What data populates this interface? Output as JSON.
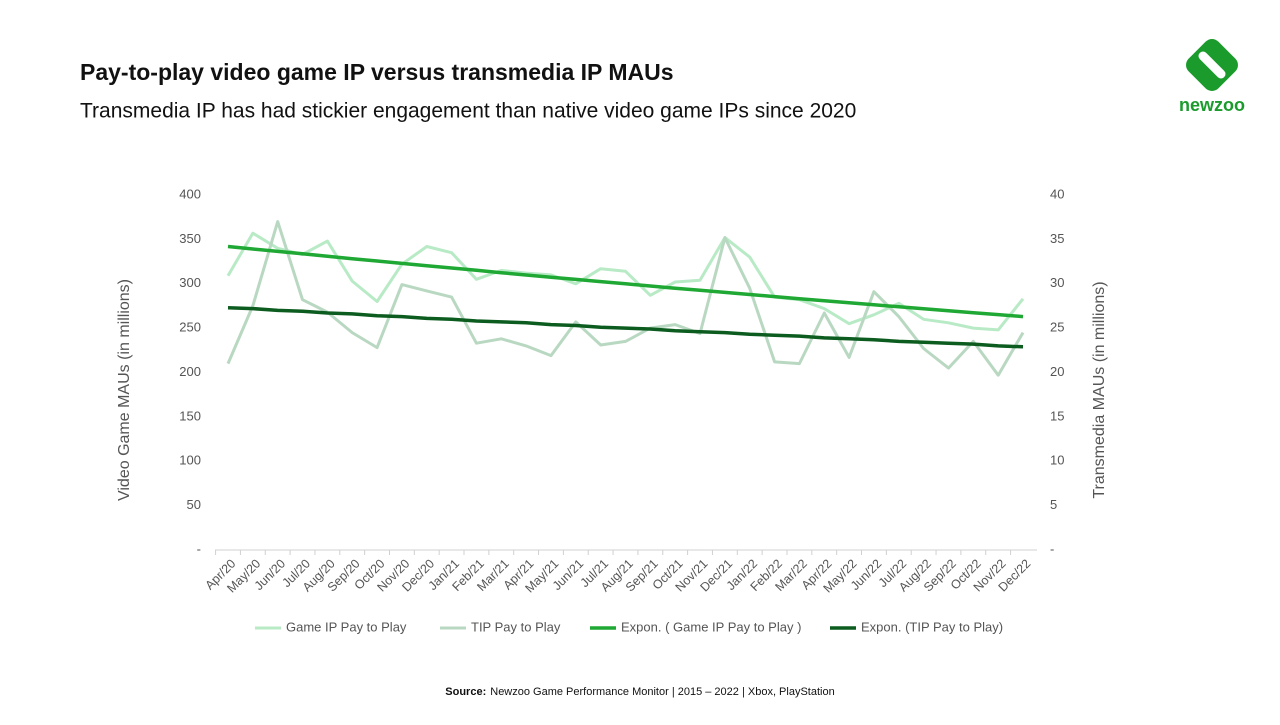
{
  "chart_data": {
    "type": "line",
    "title": "Pay-to-play video game IP versus transmedia IP MAUs",
    "subtitle": "Transmedia IP has had stickier engagement than native video game IPs since 2020",
    "ylabel": "Video Game MAUs (in millions)",
    "y2label": "Transmedia MAUs (in millions)",
    "categories": [
      "Apr/20",
      "May/20",
      "Jun/20",
      "Jul/20",
      "Aug/20",
      "Sep/20",
      "Oct/20",
      "Nov/20",
      "Dec/20",
      "Jan/21",
      "Feb/21",
      "Mar/21",
      "Apr/21",
      "May/21",
      "Jun/21",
      "Jul/21",
      "Aug/21",
      "Sep/21",
      "Oct/21",
      "Nov/21",
      "Dec/21",
      "Jan/22",
      "Feb/22",
      "Mar/22",
      "Apr/22",
      "May/22",
      "Jun/22",
      "Jul/22",
      "Aug/22",
      "Sep/22",
      "Oct/22",
      "Nov/22",
      "Dec/22"
    ],
    "series": [
      {
        "name": "Game IP Pay to Play",
        "color": "#b8eac6",
        "axis": "y",
        "values": [
          309,
          357,
          340,
          333,
          348,
          303,
          280,
          322,
          342,
          335,
          305,
          315,
          312,
          310,
          300,
          317,
          314,
          287,
          302,
          304,
          352,
          330,
          285,
          282,
          272,
          255,
          265,
          278,
          260,
          256,
          250,
          248,
          283
        ]
      },
      {
        "name": "TIP Pay to Play",
        "color": "#b9d8c1",
        "axis": "y2",
        "values": [
          21,
          27.5,
          37,
          28.2,
          26.8,
          24.5,
          22.8,
          29.9,
          29.2,
          28.5,
          23.3,
          23.8,
          23,
          21.9,
          25.7,
          23.1,
          23.5,
          25,
          25.4,
          24.4,
          35.2,
          29.5,
          21.2,
          21,
          26.7,
          21.7,
          29.1,
          26.3,
          22.7,
          20.5,
          23.5,
          19.7,
          24.5
        ]
      },
      {
        "name": "Expon. ( Game IP Pay to Play )",
        "color": "#1fa834",
        "axis": "y",
        "values": [
          342,
          339.2,
          336.4,
          333.7,
          331,
          328.2,
          325.6,
          322.9,
          320.3,
          317.7,
          315.1,
          312.5,
          309.9,
          307.4,
          304.9,
          302.4,
          299.9,
          297.5,
          295,
          292.6,
          290.2,
          287.9,
          285.5,
          283.2,
          280.9,
          278.6,
          276.3,
          274,
          271.8,
          269.6,
          267.4,
          265.2,
          263
        ]
      },
      {
        "name": "Expon. (TIP Pay to Play)",
        "color": "#0c5c1f",
        "axis": "y2",
        "values": [
          27.3,
          27.2,
          27,
          26.9,
          26.7,
          26.6,
          26.4,
          26.3,
          26.1,
          26,
          25.8,
          25.7,
          25.6,
          25.4,
          25.3,
          25.1,
          25,
          24.9,
          24.7,
          24.6,
          24.5,
          24.3,
          24.2,
          24.1,
          23.9,
          23.8,
          23.7,
          23.5,
          23.4,
          23.3,
          23.2,
          23,
          22.9
        ]
      }
    ],
    "ylim": [
      0,
      400
    ],
    "yticks": [
      {
        "value": 0,
        "label": "-"
      },
      50,
      100,
      150,
      200,
      250,
      300,
      350,
      400
    ],
    "y2lim": [
      0,
      40
    ],
    "y2ticks": [
      {
        "value": 0,
        "label": "-"
      },
      5,
      10,
      15,
      20,
      25,
      30,
      35,
      40
    ],
    "grid": false
  },
  "source": {
    "label": "Source:",
    "text": "Newzoo Game Performance Monitor | 2015 – 2022 | Xbox, PlayStation"
  },
  "logo_text": "newzoo"
}
